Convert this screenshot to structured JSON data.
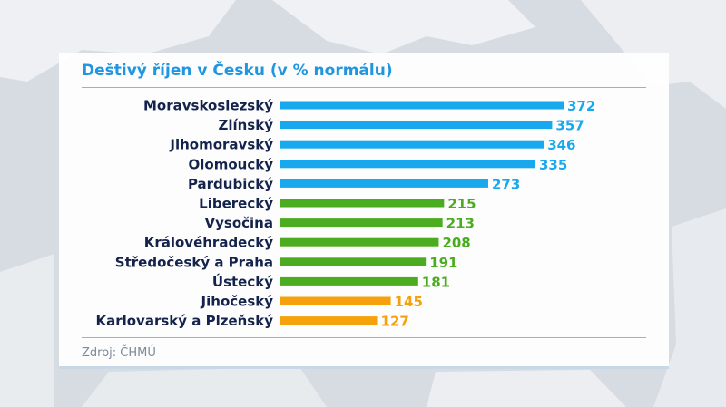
{
  "colors": {
    "high": "#17a8ee",
    "mid": "#4aac1e",
    "low": "#f5a10b",
    "title": "#2196e0",
    "label": "#13234b"
  },
  "chart_data": {
    "type": "bar",
    "orientation": "horizontal",
    "title": "Deštivý říjen v Česku (v % normálu)",
    "categories": [
      "Moravskoslezský",
      "Zlínský",
      "Jihomoravský",
      "Olomoucký",
      "Pardubický",
      "Liberecký",
      "Vysočina",
      "Královéhradecký",
      "Středočeský a Praha",
      "Ústecký",
      "Jihočeský",
      "Karlovarský a Plzeňský"
    ],
    "values": [
      372,
      357,
      346,
      335,
      273,
      215,
      213,
      208,
      191,
      181,
      145,
      127
    ],
    "bar_colors": [
      "high",
      "high",
      "high",
      "high",
      "high",
      "mid",
      "mid",
      "mid",
      "mid",
      "mid",
      "low",
      "low"
    ],
    "xlim": [
      0,
      372
    ],
    "grid": false,
    "source": "Zdroj: ČHMÚ"
  }
}
